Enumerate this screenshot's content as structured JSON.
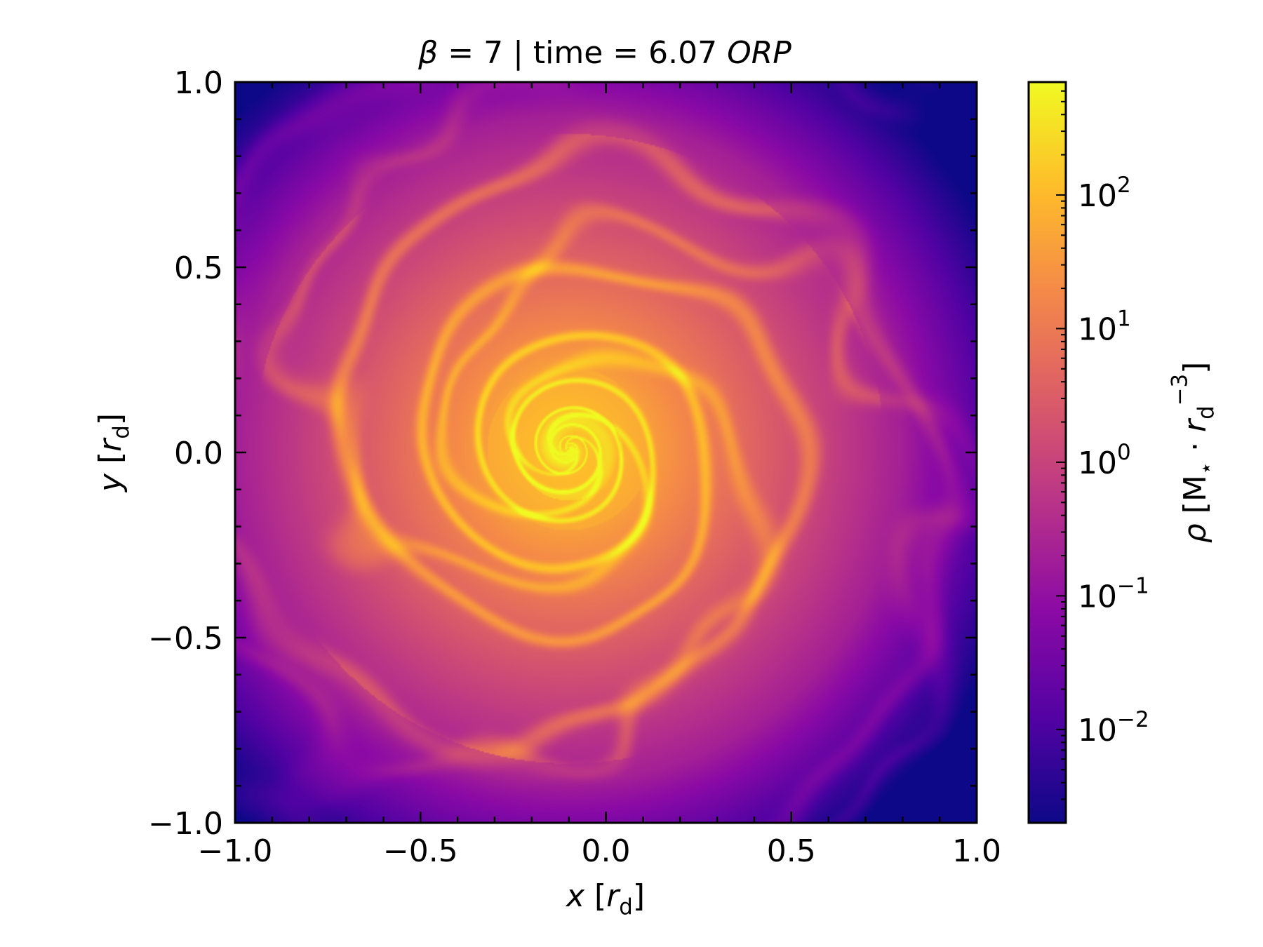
{
  "chart_data": {
    "type": "heatmap",
    "title": {
      "parts": [
        {
          "text": "β",
          "italic": true
        },
        {
          "text": " = 7 | time = 6.07 ",
          "italic": false
        },
        {
          "text": "ORP",
          "italic": true
        }
      ]
    },
    "x_axis": {
      "label": {
        "parts": [
          {
            "text": "x",
            "italic": true
          },
          {
            "text": " [",
            "italic": false
          },
          {
            "text": "r",
            "italic": true
          },
          {
            "text": "d",
            "italic": false,
            "sub": true
          },
          {
            "text": "]",
            "italic": false
          }
        ]
      },
      "range": [
        -1.0,
        1.0
      ],
      "ticks": [
        {
          "value": -1.0,
          "label": "−1.0"
        },
        {
          "value": -0.5,
          "label": "−0.5"
        },
        {
          "value": 0.0,
          "label": "0.0"
        },
        {
          "value": 0.5,
          "label": "0.5"
        },
        {
          "value": 1.0,
          "label": "1.0"
        }
      ],
      "minor_step": 0.1
    },
    "y_axis": {
      "label": {
        "parts": [
          {
            "text": "y",
            "italic": true
          },
          {
            "text": " [",
            "italic": false
          },
          {
            "text": "r",
            "italic": true
          },
          {
            "text": "d",
            "italic": false,
            "sub": true
          },
          {
            "text": "]",
            "italic": false
          }
        ]
      },
      "range": [
        -1.0,
        1.0
      ],
      "ticks": [
        {
          "value": -1.0,
          "label": "−1.0"
        },
        {
          "value": -0.5,
          "label": "−0.5"
        },
        {
          "value": 0.0,
          "label": "0.0"
        },
        {
          "value": 0.5,
          "label": "0.5"
        },
        {
          "value": 1.0,
          "label": "1.0"
        }
      ],
      "minor_step": 0.1
    },
    "colorbar": {
      "label": {
        "parts": [
          {
            "text": "ρ",
            "italic": true
          },
          {
            "text": " [M",
            "italic": false
          },
          {
            "text": "⋆",
            "italic": false,
            "sub": true
          },
          {
            "text": " · ",
            "italic": false
          },
          {
            "text": "r",
            "italic": true
          },
          {
            "text": "d",
            "italic": false,
            "sub": true
          },
          {
            "text": "−3",
            "italic": false,
            "sup": true
          },
          {
            "text": "]",
            "italic": false
          }
        ]
      },
      "scale": "log",
      "range": [
        0.002,
        700
      ],
      "colormap": "plasma",
      "colormap_stops": [
        "#0d0887",
        "#5302a3",
        "#8b0aa5",
        "#b83289",
        "#db5c68",
        "#f48849",
        "#febd2a",
        "#f0f921"
      ],
      "ticks": [
        {
          "value": 0.01,
          "base": "10",
          "exponent": "−2"
        },
        {
          "value": 0.1,
          "base": "10",
          "exponent": "−1"
        },
        {
          "value": 1,
          "base": "10",
          "exponent": "0"
        },
        {
          "value": 10,
          "base": "10",
          "exponent": "1"
        },
        {
          "value": 100,
          "base": "10",
          "exponent": "2"
        }
      ]
    },
    "field": {
      "description_values": "log10 density on the disc plane",
      "center": [
        -0.1,
        0.01
      ],
      "core_log10_max": 2.6,
      "edge_log10_min": -2.6
    },
    "grid": false
  }
}
